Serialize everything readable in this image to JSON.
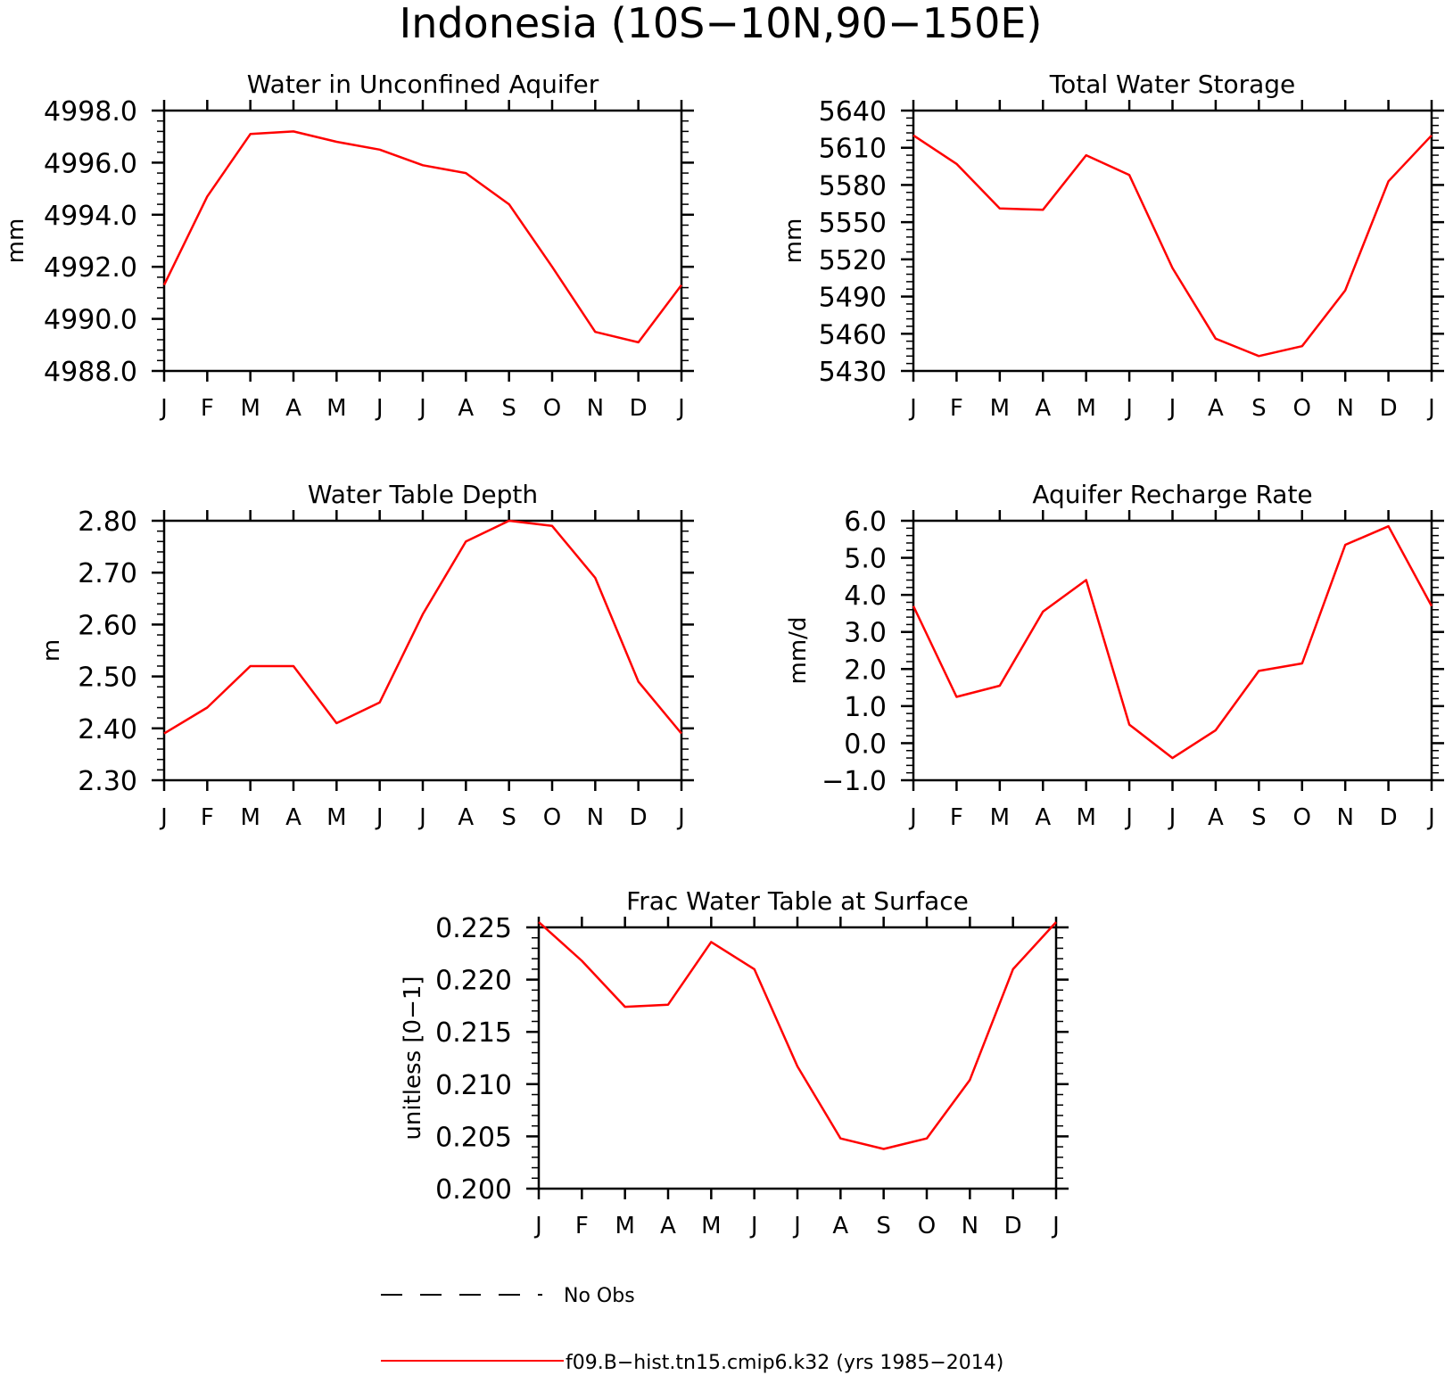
{
  "figure": {
    "title": "Indonesia (10S−10N,90−150E)",
    "months": [
      "J",
      "F",
      "M",
      "A",
      "M",
      "J",
      "J",
      "A",
      "S",
      "O",
      "N",
      "D",
      "J"
    ]
  },
  "legend": {
    "entries": [
      {
        "label": "No Obs",
        "style": "dashed",
        "color": "#000000"
      },
      {
        "label": "f09.B−hist.tn15.cmip6.k32 (yrs 1985−2014)",
        "style": "solid",
        "color": "#ff0000"
      }
    ]
  },
  "colors": {
    "series": "#ff0000",
    "axis": "#000000"
  },
  "chart_data": [
    {
      "type": "line",
      "title": "Water in Unconfined Aquifer",
      "ylabel": "mm",
      "xlabel": "",
      "categories": [
        "J",
        "F",
        "M",
        "A",
        "M",
        "J",
        "J",
        "A",
        "S",
        "O",
        "N",
        "D",
        "J"
      ],
      "ylim": [
        4988.0,
        4998.0
      ],
      "yticks": [
        "4988.0",
        "4990.0",
        "4992.0",
        "4994.0",
        "4996.0",
        "4998.0"
      ],
      "series": [
        {
          "values": [
            4991.3,
            4994.7,
            4997.1,
            4997.2,
            4996.8,
            4996.5,
            4995.9,
            4995.6,
            4994.4,
            4992.0,
            4989.5,
            4989.1,
            4991.3
          ]
        }
      ]
    },
    {
      "type": "line",
      "title": "Total Water Storage",
      "ylabel": "mm",
      "xlabel": "",
      "categories": [
        "J",
        "F",
        "M",
        "A",
        "M",
        "J",
        "J",
        "A",
        "S",
        "O",
        "N",
        "D",
        "J"
      ],
      "ylim": [
        5430,
        5640
      ],
      "yticks": [
        "5430",
        "5460",
        "5490",
        "5520",
        "5550",
        "5580",
        "5610",
        "5640"
      ],
      "series": [
        {
          "values": [
            5620,
            5597,
            5561,
            5560,
            5604,
            5588,
            5513,
            5456,
            5442,
            5450,
            5495,
            5583,
            5620
          ]
        }
      ]
    },
    {
      "type": "line",
      "title": "Water Table Depth",
      "ylabel": "m",
      "xlabel": "",
      "categories": [
        "J",
        "F",
        "M",
        "A",
        "M",
        "J",
        "J",
        "A",
        "S",
        "O",
        "N",
        "D",
        "J"
      ],
      "ylim": [
        2.3,
        2.8
      ],
      "yticks": [
        "2.30",
        "2.40",
        "2.50",
        "2.60",
        "2.70",
        "2.80"
      ],
      "series": [
        {
          "values": [
            2.39,
            2.44,
            2.52,
            2.52,
            2.41,
            2.45,
            2.62,
            2.76,
            2.8,
            2.79,
            2.69,
            2.49,
            2.39
          ]
        }
      ]
    },
    {
      "type": "line",
      "title": "Aquifer Recharge Rate",
      "ylabel": "mm/d",
      "xlabel": "",
      "categories": [
        "J",
        "F",
        "M",
        "A",
        "M",
        "J",
        "J",
        "A",
        "S",
        "O",
        "N",
        "D",
        "J"
      ],
      "ylim": [
        -1.0,
        6.0
      ],
      "yticks": [
        "−1.0",
        "0.0",
        "1.0",
        "2.0",
        "3.0",
        "4.0",
        "5.0",
        "6.0"
      ],
      "series": [
        {
          "values": [
            3.7,
            1.25,
            1.55,
            3.55,
            4.4,
            0.5,
            -0.4,
            0.35,
            1.95,
            2.15,
            5.35,
            5.85,
            3.7
          ]
        }
      ]
    },
    {
      "type": "line",
      "title": "Frac Water Table at Surface",
      "ylabel": "unitless [0−1]",
      "xlabel": "",
      "categories": [
        "J",
        "F",
        "M",
        "A",
        "M",
        "J",
        "J",
        "A",
        "S",
        "O",
        "N",
        "D",
        "J"
      ],
      "ylim": [
        0.2,
        0.225
      ],
      "yticks": [
        "0.200",
        "0.205",
        "0.210",
        "0.215",
        "0.220",
        "0.225"
      ],
      "series": [
        {
          "values": [
            0.2255,
            0.2218,
            0.2174,
            0.2176,
            0.2236,
            0.221,
            0.2117,
            0.2048,
            0.2038,
            0.2048,
            0.2104,
            0.221,
            0.2255
          ]
        }
      ]
    }
  ]
}
